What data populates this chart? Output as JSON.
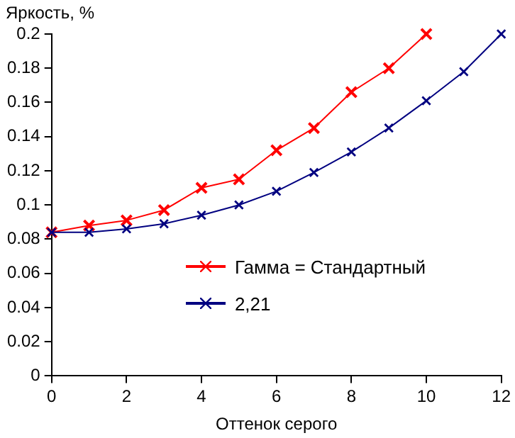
{
  "chart_data": {
    "type": "line",
    "ylabel": "Яркость, %",
    "xlabel": "Оттенок серого",
    "x": [
      0,
      1,
      2,
      3,
      4,
      5,
      6,
      7,
      8,
      9,
      10,
      11,
      12
    ],
    "series": [
      {
        "name": "Гамма = Стандартный",
        "color": "#ff0000",
        "values": [
          0.084,
          0.088,
          0.091,
          0.097,
          0.11,
          0.115,
          0.132,
          0.145,
          0.166,
          0.18,
          0.2,
          null,
          null
        ]
      },
      {
        "name": "2,21",
        "color": "#000080",
        "values": [
          0.084,
          0.084,
          0.086,
          0.089,
          0.094,
          0.1,
          0.108,
          0.119,
          0.131,
          0.145,
          0.161,
          0.178,
          0.2
        ]
      }
    ],
    "xlim": [
      0,
      12
    ],
    "xticks": [
      0,
      2,
      4,
      6,
      8,
      10,
      12
    ],
    "ylim": [
      0,
      0.2
    ],
    "yticks": [
      0,
      0.02,
      0.04,
      0.06,
      0.08,
      0.1,
      0.12,
      0.14,
      0.16,
      0.18,
      0.2
    ],
    "grid": false,
    "legend": "center",
    "marker": "cross",
    "line_style": "solid"
  }
}
